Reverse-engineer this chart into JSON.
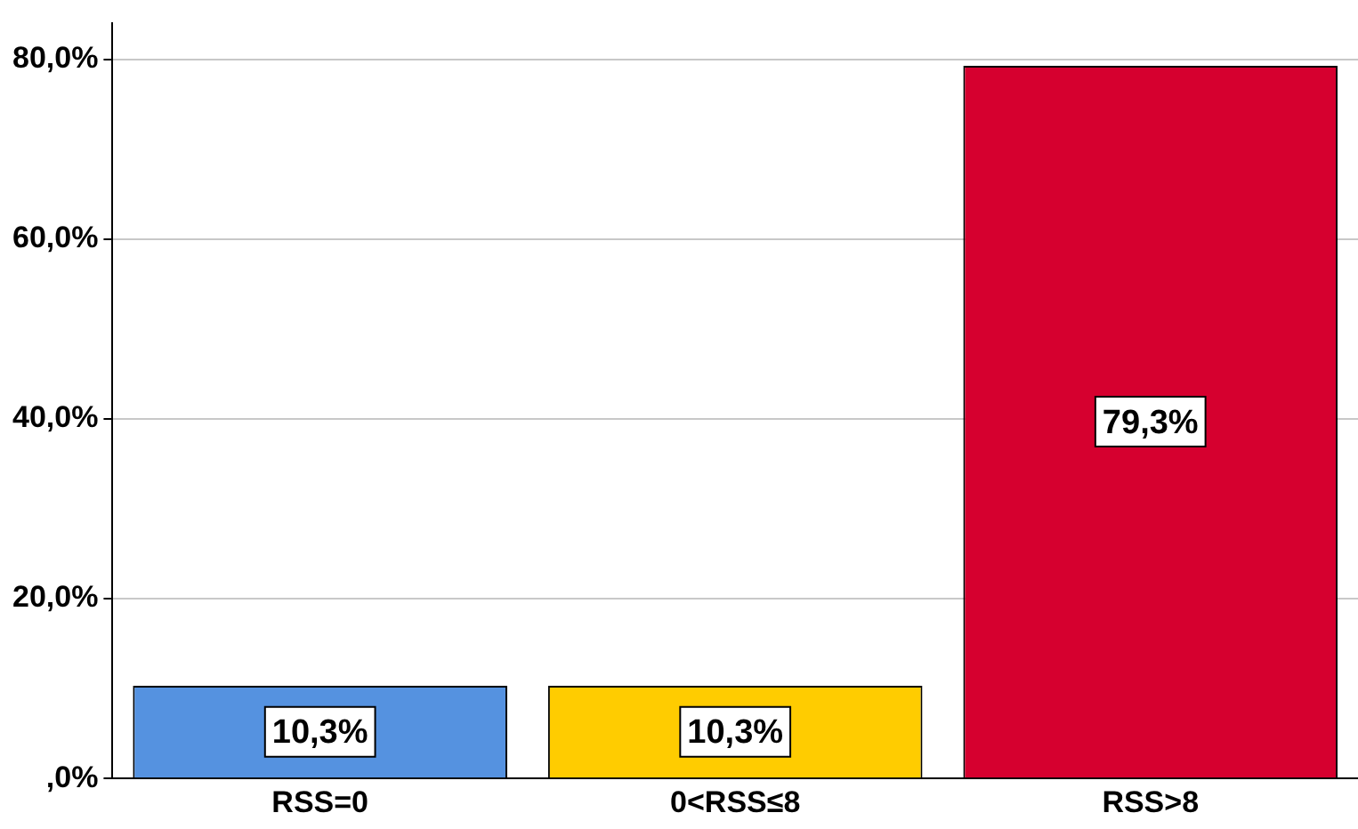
{
  "chart_data": {
    "type": "bar",
    "categories": [
      "RSS=0",
      "0<RSS≤8",
      "RSS>8"
    ],
    "values": [
      10.3,
      10.3,
      79.3
    ],
    "colors": [
      "#5592e0",
      "#ffcc00",
      "#d6002f"
    ],
    "value_labels": [
      "10,3%",
      "10,3%",
      "79,3%"
    ],
    "ylim": [
      0,
      84
    ],
    "yticks": [
      {
        "value": 0,
        "label": ",0%"
      },
      {
        "value": 20,
        "label": "20,0%"
      },
      {
        "value": 40,
        "label": "40,0%"
      },
      {
        "value": 60,
        "label": "60,0%"
      },
      {
        "value": 80,
        "label": "80,0%"
      }
    ],
    "grid": "y",
    "legend": false
  }
}
